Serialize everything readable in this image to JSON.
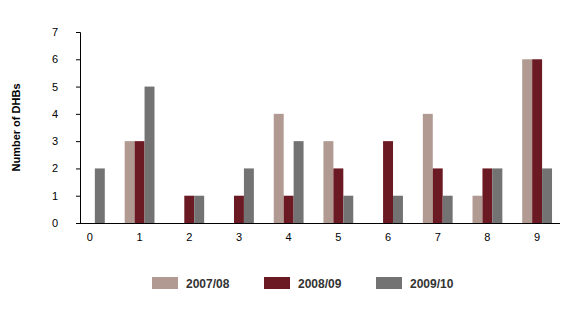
{
  "chart_data": {
    "type": "bar",
    "categories": [
      "0",
      "1",
      "2",
      "3",
      "4",
      "5",
      "6",
      "7",
      "8",
      "9"
    ],
    "series": [
      {
        "name": "2007/08",
        "color": "#b09a92",
        "values": [
          0,
          3,
          0,
          0,
          4,
          3,
          0,
          4,
          1,
          6
        ]
      },
      {
        "name": "2008/09",
        "color": "#6b1a24",
        "values": [
          0,
          3,
          1,
          1,
          1,
          2,
          3,
          2,
          2,
          6
        ]
      },
      {
        "name": "2009/10",
        "color": "#737373",
        "values": [
          2,
          5,
          1,
          2,
          3,
          1,
          1,
          1,
          2,
          2
        ]
      }
    ],
    "y_label": "Number of DHBs",
    "ylim": [
      0,
      7
    ],
    "yticks": [
      0,
      1,
      2,
      3,
      4,
      5,
      6,
      7
    ],
    "grid": false,
    "legend": "bottom"
  }
}
